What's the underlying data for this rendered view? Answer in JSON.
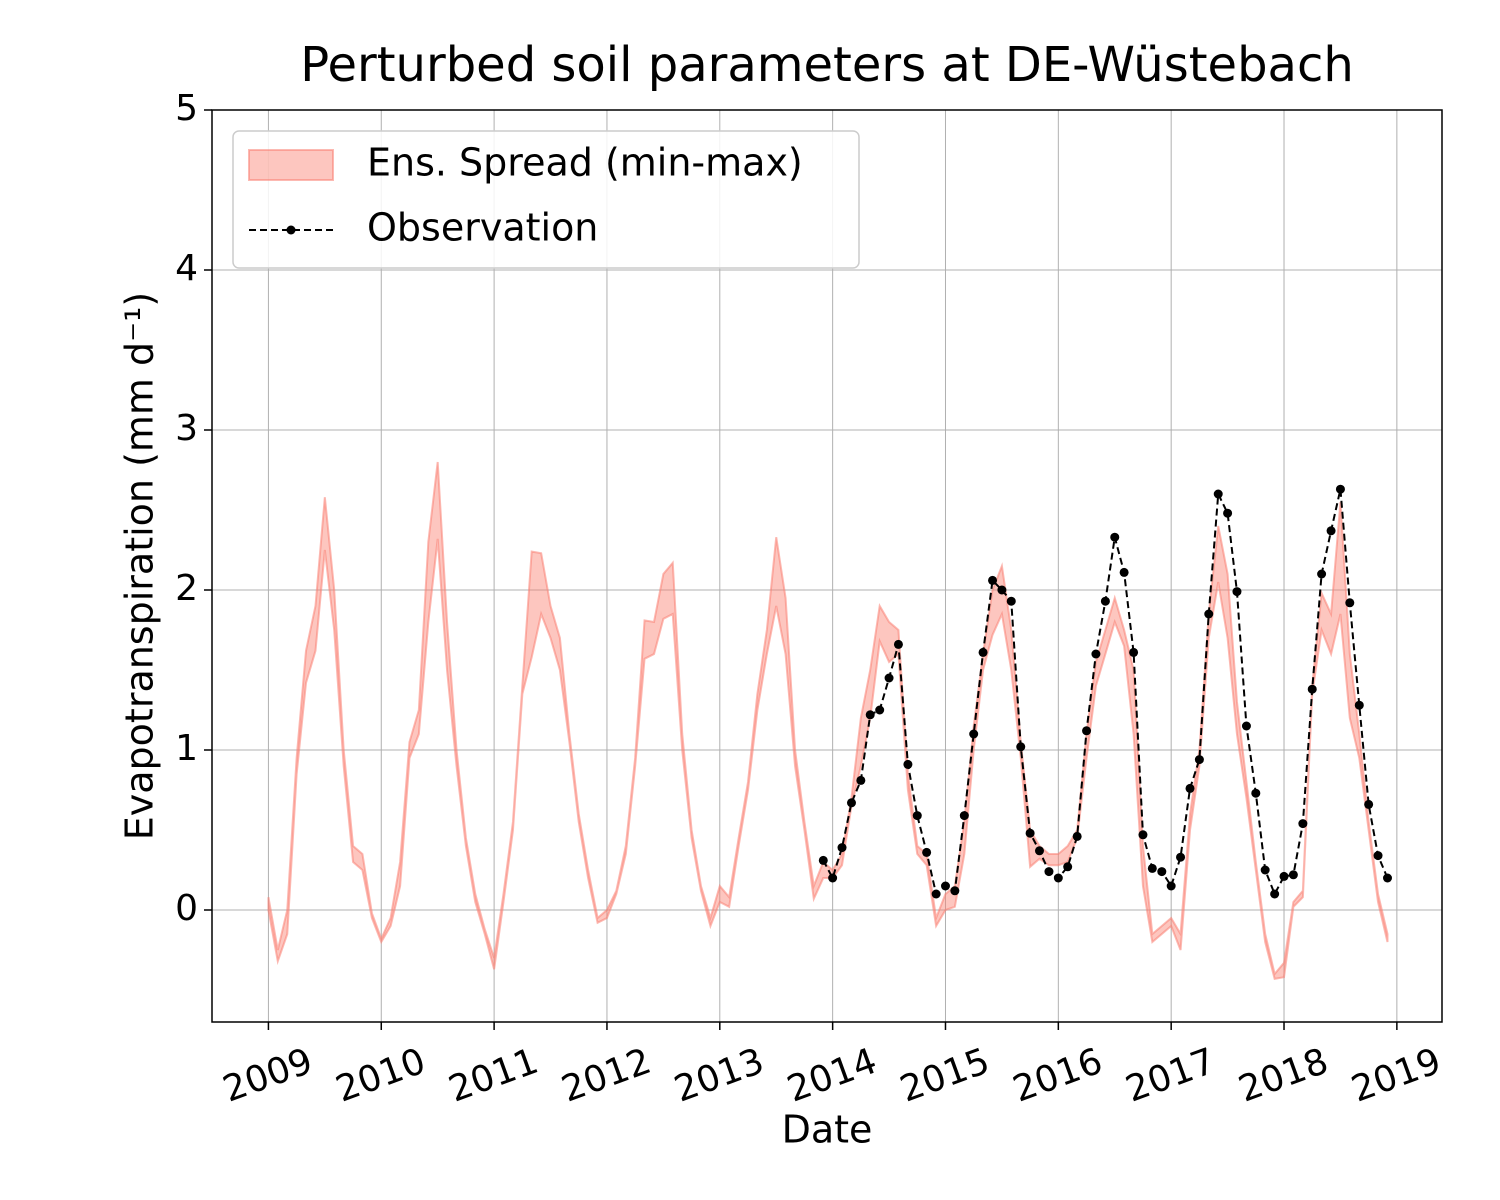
{
  "chart_data": {
    "type": "line",
    "title": "Perturbed soil parameters at DE-Wüstebach",
    "xlabel": "Date",
    "ylabel": "Evapotranspiration  (mm d⁻¹)",
    "xlim": [
      2008.5,
      2019.4
    ],
    "ylim": [
      -0.7,
      5
    ],
    "xticks": [
      2009,
      2010,
      2011,
      2012,
      2013,
      2014,
      2015,
      2016,
      2017,
      2018,
      2019
    ],
    "yticks": [
      0,
      1,
      2,
      3,
      4,
      5
    ],
    "grid": true,
    "legend": "upper left",
    "series": [
      {
        "name": "Ens. Spread (min-max)",
        "type": "band",
        "color": "#fa8072",
        "x": [
          2009.0,
          2009.083,
          2009.167,
          2009.25,
          2009.333,
          2009.417,
          2009.5,
          2009.583,
          2009.667,
          2009.75,
          2009.833,
          2009.917,
          2010.0,
          2010.083,
          2010.167,
          2010.25,
          2010.333,
          2010.417,
          2010.5,
          2010.583,
          2010.667,
          2010.75,
          2010.833,
          2010.917,
          2011.0,
          2011.083,
          2011.167,
          2011.25,
          2011.333,
          2011.417,
          2011.5,
          2011.583,
          2011.667,
          2011.75,
          2011.833,
          2011.917,
          2012.0,
          2012.083,
          2012.167,
          2012.25,
          2012.333,
          2012.417,
          2012.5,
          2012.583,
          2012.667,
          2012.75,
          2012.833,
          2012.917,
          2013.0,
          2013.083,
          2013.167,
          2013.25,
          2013.333,
          2013.417,
          2013.5,
          2013.583,
          2013.667,
          2013.75,
          2013.833,
          2013.917,
          2014.0,
          2014.083,
          2014.167,
          2014.25,
          2014.333,
          2014.417,
          2014.5,
          2014.583,
          2014.667,
          2014.75,
          2014.833,
          2014.917,
          2015.0,
          2015.083,
          2015.167,
          2015.25,
          2015.333,
          2015.417,
          2015.5,
          2015.583,
          2015.667,
          2015.75,
          2015.833,
          2015.917,
          2016.0,
          2016.083,
          2016.167,
          2016.25,
          2016.333,
          2016.417,
          2016.5,
          2016.583,
          2016.667,
          2016.75,
          2016.833,
          2016.917,
          2017.0,
          2017.083,
          2017.167,
          2017.25,
          2017.333,
          2017.417,
          2017.5,
          2017.583,
          2017.667,
          2017.75,
          2017.833,
          2017.917,
          2018.0,
          2018.083,
          2018.167,
          2018.25,
          2018.333,
          2018.417,
          2018.5,
          2018.583,
          2018.667,
          2018.75,
          2018.833,
          2018.917
        ],
        "lower": [
          0.0,
          -0.32,
          -0.15,
          0.85,
          1.42,
          1.62,
          2.25,
          1.75,
          0.9,
          0.3,
          0.25,
          -0.05,
          -0.2,
          -0.1,
          0.15,
          0.95,
          1.1,
          1.8,
          2.32,
          1.5,
          0.9,
          0.4,
          0.05,
          -0.15,
          -0.37,
          0.05,
          0.5,
          1.35,
          1.58,
          1.85,
          1.7,
          1.5,
          1.05,
          0.55,
          0.2,
          -0.08,
          -0.05,
          0.1,
          0.35,
          0.9,
          1.57,
          1.6,
          1.82,
          1.85,
          1.0,
          0.45,
          0.12,
          -0.1,
          0.05,
          0.02,
          0.4,
          0.75,
          1.25,
          1.6,
          1.9,
          1.6,
          0.9,
          0.5,
          0.07,
          0.2,
          0.2,
          0.28,
          0.65,
          0.9,
          1.2,
          1.68,
          1.55,
          1.6,
          0.75,
          0.35,
          0.28,
          -0.1,
          0.0,
          0.02,
          0.35,
          1.0,
          1.5,
          1.72,
          1.85,
          1.5,
          0.95,
          0.27,
          0.32,
          0.28,
          0.28,
          0.3,
          0.45,
          0.95,
          1.4,
          1.6,
          1.8,
          1.65,
          1.1,
          0.15,
          -0.2,
          -0.15,
          -0.1,
          -0.25,
          0.5,
          0.9,
          1.7,
          2.05,
          1.7,
          1.1,
          0.7,
          0.25,
          -0.2,
          -0.43,
          -0.42,
          0.02,
          0.08,
          1.35,
          1.75,
          1.6,
          1.85,
          1.2,
          0.95,
          0.5,
          0.05,
          -0.2
        ],
        "upper": [
          0.08,
          -0.25,
          0.0,
          0.95,
          1.62,
          1.9,
          2.58,
          2.0,
          1.0,
          0.4,
          0.35,
          -0.02,
          -0.18,
          -0.05,
          0.3,
          1.05,
          1.25,
          2.3,
          2.8,
          1.8,
          1.0,
          0.45,
          0.1,
          -0.12,
          -0.3,
          0.1,
          0.55,
          1.4,
          2.24,
          2.23,
          1.9,
          1.7,
          1.1,
          0.6,
          0.25,
          -0.05,
          0.0,
          0.12,
          0.4,
          0.95,
          1.81,
          1.8,
          2.1,
          2.17,
          1.1,
          0.5,
          0.15,
          -0.05,
          0.15,
          0.08,
          0.45,
          0.8,
          1.35,
          1.75,
          2.33,
          1.95,
          1.0,
          0.55,
          0.15,
          0.3,
          0.25,
          0.35,
          0.7,
          1.2,
          1.5,
          1.9,
          1.8,
          1.75,
          0.85,
          0.4,
          0.35,
          -0.05,
          0.1,
          0.15,
          0.55,
          1.15,
          1.6,
          2.0,
          2.15,
          1.75,
          1.05,
          0.5,
          0.4,
          0.35,
          0.35,
          0.4,
          0.5,
          1.1,
          1.55,
          1.75,
          1.95,
          1.75,
          1.5,
          0.4,
          -0.15,
          -0.1,
          -0.05,
          -0.15,
          0.6,
          1.0,
          1.85,
          2.4,
          2.1,
          1.3,
          0.8,
          0.3,
          -0.15,
          -0.4,
          -0.33,
          0.05,
          0.12,
          1.4,
          1.98,
          1.85,
          2.55,
          1.6,
          1.1,
          0.55,
          0.1,
          -0.15
        ]
      },
      {
        "name": "Observation",
        "color": "#000000",
        "x": [
          2013.917,
          2014.0,
          2014.083,
          2014.167,
          2014.25,
          2014.333,
          2014.417,
          2014.5,
          2014.583,
          2014.667,
          2014.75,
          2014.833,
          2014.917,
          2015.0,
          2015.083,
          2015.167,
          2015.25,
          2015.333,
          2015.417,
          2015.5,
          2015.583,
          2015.667,
          2015.75,
          2015.833,
          2015.917,
          2016.0,
          2016.083,
          2016.167,
          2016.25,
          2016.333,
          2016.417,
          2016.5,
          2016.583,
          2016.667,
          2016.75,
          2016.833,
          2016.917,
          2017.0,
          2017.083,
          2017.167,
          2017.25,
          2017.333,
          2017.417,
          2017.5,
          2017.583,
          2017.667,
          2017.75,
          2017.833,
          2017.917,
          2018.0,
          2018.083,
          2018.167,
          2018.25,
          2018.333,
          2018.417,
          2018.5,
          2018.583,
          2018.667,
          2018.75,
          2018.833,
          2018.917
        ],
        "values": [
          0.31,
          0.2,
          0.39,
          0.67,
          0.81,
          1.22,
          1.25,
          1.45,
          1.66,
          0.91,
          0.59,
          0.36,
          0.1,
          0.15,
          0.12,
          0.59,
          1.1,
          1.61,
          2.06,
          2.0,
          1.93,
          1.02,
          0.48,
          0.37,
          0.24,
          0.2,
          0.27,
          0.46,
          1.12,
          1.6,
          1.93,
          2.33,
          2.11,
          1.61,
          0.47,
          0.26,
          0.24,
          0.15,
          0.33,
          0.76,
          0.94,
          1.85,
          2.6,
          2.48,
          1.99,
          1.15,
          0.73,
          0.25,
          0.1,
          0.21,
          0.22,
          0.54,
          1.38,
          2.1,
          2.37,
          2.63,
          1.92,
          1.28,
          0.66,
          0.34,
          0.2
        ]
      }
    ]
  }
}
